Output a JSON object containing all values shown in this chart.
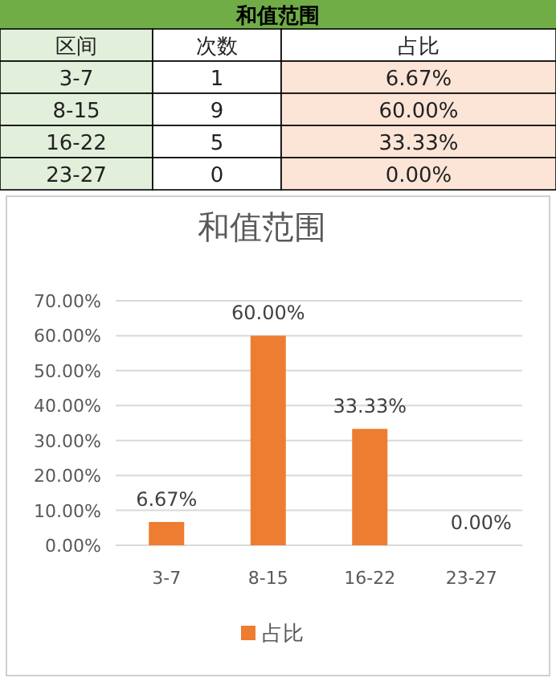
{
  "chart_data": [
    {
      "type": "other",
      "title": "和值范围",
      "categories": [
        "区间",
        "次数",
        "占比"
      ],
      "annotations": [
        "3-7",
        "1",
        "6.67%",
        "8-15",
        "9",
        "60.00%",
        "16-22",
        "5",
        "33.33%",
        "23-27",
        "0",
        "0.00%"
      ]
    },
    {
      "type": "bar",
      "title": "和值范围",
      "categories": [
        "3-7",
        "8-15",
        "16-22",
        "23-27"
      ],
      "series": [
        {
          "name": "占比",
          "color": "#ed7d31",
          "values": [
            6.67,
            60,
            33.33,
            0
          ],
          "value_labels": [
            "6.67%",
            "60.00%",
            "33.33%",
            "0.00%"
          ]
        }
      ],
      "ylim": [
        0,
        70
      ],
      "yticks": [
        {
          "value": 0,
          "label": "0.00%"
        },
        {
          "value": 10,
          "label": "10.00%"
        },
        {
          "value": 20,
          "label": "20.00%"
        },
        {
          "value": 30,
          "label": "30.00%"
        },
        {
          "value": 40,
          "label": "40.00%"
        },
        {
          "value": 50,
          "label": "50.00%"
        },
        {
          "value": 60,
          "label": "60.00%"
        },
        {
          "value": 70,
          "label": "70.00%"
        }
      ],
      "grid": "y",
      "legend": "bottom"
    }
  ]
}
